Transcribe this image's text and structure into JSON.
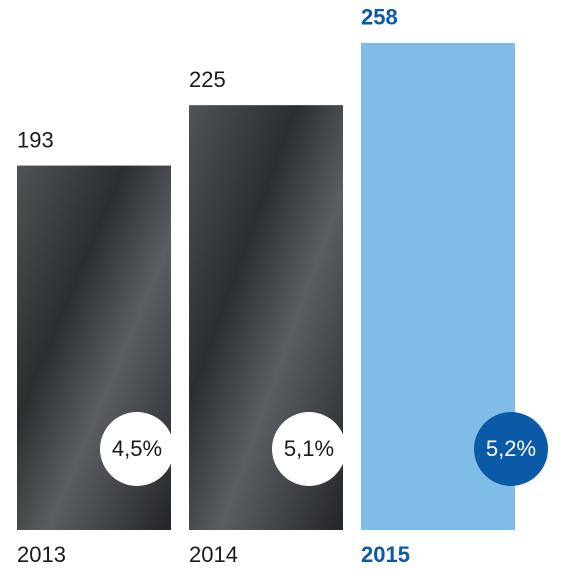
{
  "chart_data": {
    "type": "bar",
    "categories": [
      "2013",
      "2014",
      "2015"
    ],
    "values": [
      193,
      225,
      258
    ],
    "colors": [
      "#3b3e43",
      "#3b3e43",
      "#7fbde8"
    ],
    "label_colors": [
      "#1a1a1a",
      "#1a1a1a",
      "#0b5aa8"
    ],
    "shares": {
      "values": [
        4.5,
        5.1,
        5.2
      ],
      "value_labels": [
        "4,5%",
        "5,1%",
        "5,2%"
      ],
      "colors": [
        "#ffffff",
        "#ffffff",
        "#0b5aa8"
      ],
      "text_colors": [
        "#1a1a1a",
        "#1a1a1a",
        "#ffffff"
      ]
    }
  }
}
